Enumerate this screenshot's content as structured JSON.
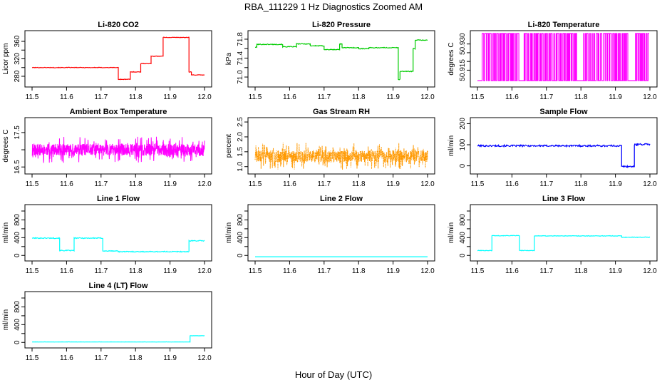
{
  "title": "RBA_111229  1 Hz Diagnostics Zoomed AM",
  "x_axis_label": "Hour of Day (UTC)",
  "chart_data": [
    {
      "type": "line",
      "title": "Li-820 CO2",
      "ylabel": "Licor ppm",
      "color": "#ff0000",
      "xlim": [
        11.5,
        12.0
      ],
      "ylim": [
        262,
        378
      ],
      "xticks": [
        11.5,
        11.6,
        11.7,
        11.8,
        11.9,
        12.0
      ],
      "yticks": [
        280,
        300,
        320,
        340,
        360
      ],
      "yticklabels": [
        "280",
        "",
        "320",
        "",
        "360"
      ],
      "noise": 0.6,
      "segments": [
        [
          11.5,
          11.75,
          300
        ],
        [
          11.75,
          11.785,
          273
        ],
        [
          11.785,
          11.815,
          290
        ],
        [
          11.815,
          11.845,
          309
        ],
        [
          11.845,
          11.88,
          326
        ],
        [
          11.88,
          11.955,
          369
        ],
        [
          11.955,
          11.962,
          290
        ],
        [
          11.962,
          12.0,
          283
        ]
      ]
    },
    {
      "type": "line",
      "title": "Li-820 Pressure",
      "ylabel": "kPa",
      "color": "#00cc00",
      "xlim": [
        11.5,
        12.0
      ],
      "ylim": [
        70.85,
        71.92
      ],
      "xticks": [
        11.5,
        11.6,
        11.7,
        11.8,
        11.9,
        12.0
      ],
      "yticks": [
        71.0,
        71.2,
        71.4,
        71.6,
        71.8
      ],
      "yticklabels": [
        "71.0",
        "",
        "71.4",
        "",
        "71.8"
      ],
      "noise": 0.008,
      "segments": [
        [
          11.5,
          11.505,
          71.63
        ],
        [
          11.505,
          11.58,
          71.69
        ],
        [
          11.58,
          11.62,
          71.64
        ],
        [
          11.62,
          11.66,
          71.7
        ],
        [
          11.66,
          11.7,
          71.66
        ],
        [
          11.7,
          11.745,
          71.58
        ],
        [
          11.745,
          11.752,
          71.7
        ],
        [
          11.752,
          11.8,
          71.62
        ],
        [
          11.8,
          11.83,
          71.6
        ],
        [
          11.83,
          11.915,
          71.62
        ],
        [
          11.915,
          11.92,
          70.95
        ],
        [
          11.92,
          11.958,
          71.12
        ],
        [
          11.958,
          11.964,
          71.6
        ],
        [
          11.964,
          12.0,
          71.78
        ]
      ]
    },
    {
      "type": "line",
      "title": "Li-820 Temperature",
      "ylabel": "degrees C",
      "color": "#ff00ff",
      "xlim": [
        11.5,
        12.0
      ],
      "ylim": [
        50.907,
        50.936
      ],
      "xticks": [
        11.5,
        11.6,
        11.7,
        11.8,
        11.9,
        12.0
      ],
      "yticks": [
        50.915,
        50.92,
        50.925,
        50.93
      ],
      "yticklabels": [
        "50.915",
        "",
        "",
        "50.930"
      ],
      "step_values": [
        50.909,
        50.936
      ],
      "step_seed": 7,
      "step_count": 160
    },
    {
      "type": "line",
      "title": "Ambient Box Temperature",
      "ylabel": "degrees C",
      "color": "#ff00ff",
      "xlim": [
        11.5,
        12.0
      ],
      "ylim": [
        16.38,
        17.85
      ],
      "xticks": [
        11.5,
        11.6,
        11.7,
        11.8,
        11.9,
        12.0
      ],
      "yticks": [
        16.5,
        17.0,
        17.5
      ],
      "yticklabels": [
        "16.5",
        "",
        "17.5"
      ],
      "noise_mean": 17.0,
      "noise_amp": 0.38,
      "noise_seed": 11,
      "noise_points": 900
    },
    {
      "type": "line",
      "title": "Gas Stream RH",
      "ylabel": "percent",
      "color": "#ff9900",
      "xlim": [
        11.5,
        12.0
      ],
      "ylim": [
        0.85,
        2.55
      ],
      "xticks": [
        11.5,
        11.6,
        11.7,
        11.8,
        11.9,
        12.0
      ],
      "yticks": [
        1.0,
        1.5,
        2.0,
        2.5
      ],
      "yticklabels": [
        "1.0",
        "1.5",
        "2.0",
        "2.5"
      ],
      "noise_mean": 1.35,
      "noise_amp": 0.45,
      "noise_seed": 23,
      "noise_points": 900
    },
    {
      "type": "line",
      "title": "Sample Flow",
      "ylabel": "ml/min",
      "color": "#0000ff",
      "xlim": [
        11.5,
        12.0
      ],
      "ylim": [
        -25,
        215
      ],
      "xticks": [
        11.5,
        11.6,
        11.7,
        11.8,
        11.9,
        12.0
      ],
      "yticks": [
        0,
        100,
        200
      ],
      "yticklabels": [
        "0",
        "100",
        "200"
      ],
      "noise": 4,
      "segments": [
        [
          11.5,
          11.918,
          95
        ],
        [
          11.918,
          11.955,
          -3
        ],
        [
          11.955,
          11.962,
          100
        ],
        [
          11.962,
          12.0,
          102
        ]
      ]
    },
    {
      "type": "line",
      "title": "Line 1 Flow",
      "ylabel": "ml/min",
      "color": "#00ffff",
      "xlim": [
        11.5,
        12.0
      ],
      "ylim": [
        -60,
        1080
      ],
      "xticks": [
        11.5,
        11.6,
        11.7,
        11.8,
        11.9,
        12.0
      ],
      "yticks": [
        0,
        200,
        400,
        600,
        800,
        1000
      ],
      "yticklabels": [
        "0",
        "",
        "400",
        "",
        "800",
        ""
      ],
      "noise": 10,
      "segments": [
        [
          11.5,
          11.58,
          390
        ],
        [
          11.58,
          11.622,
          110
        ],
        [
          11.622,
          11.705,
          390
        ],
        [
          11.705,
          11.75,
          100
        ],
        [
          11.75,
          11.955,
          85
        ],
        [
          11.955,
          12.0,
          330
        ]
      ]
    },
    {
      "type": "line",
      "title": "Line 2 Flow",
      "ylabel": "ml/min",
      "color": "#00ffff",
      "xlim": [
        11.5,
        12.0
      ],
      "ylim": [
        -60,
        1080
      ],
      "xticks": [
        11.5,
        11.6,
        11.7,
        11.8,
        11.9,
        12.0
      ],
      "yticks": [
        0,
        200,
        400,
        600,
        800,
        1000
      ],
      "yticklabels": [
        "0",
        "",
        "400",
        "",
        "800",
        ""
      ],
      "noise": 0,
      "segments": [
        [
          11.5,
          12.0,
          -30
        ]
      ]
    },
    {
      "type": "line",
      "title": "Line 3 Flow",
      "ylabel": "ml/min",
      "color": "#00ffff",
      "xlim": [
        11.5,
        12.0
      ],
      "ylim": [
        -60,
        1080
      ],
      "xticks": [
        11.5,
        11.6,
        11.7,
        11.8,
        11.9,
        12.0
      ],
      "yticks": [
        0,
        200,
        400,
        600,
        800,
        1000
      ],
      "yticklabels": [
        "0",
        "",
        "400",
        "",
        "800",
        ""
      ],
      "noise": 6,
      "segments": [
        [
          11.5,
          11.542,
          110
        ],
        [
          11.542,
          11.622,
          445
        ],
        [
          11.622,
          11.665,
          110
        ],
        [
          11.665,
          11.918,
          440
        ],
        [
          11.918,
          12.0,
          410
        ]
      ]
    },
    {
      "type": "line",
      "title": "Line 4 (LT) Flow",
      "ylabel": "ml/min",
      "color": "#00ffff",
      "xlim": [
        11.5,
        12.0
      ],
      "ylim": [
        -60,
        1080
      ],
      "xticks": [
        11.5,
        11.6,
        11.7,
        11.8,
        11.9,
        12.0
      ],
      "yticks": [
        0,
        200,
        400,
        600,
        800,
        1000
      ],
      "yticklabels": [
        "0",
        "",
        "400",
        "",
        "800",
        ""
      ],
      "noise": 2,
      "segments": [
        [
          11.5,
          11.958,
          10
        ],
        [
          11.958,
          12.0,
          150
        ]
      ]
    }
  ]
}
